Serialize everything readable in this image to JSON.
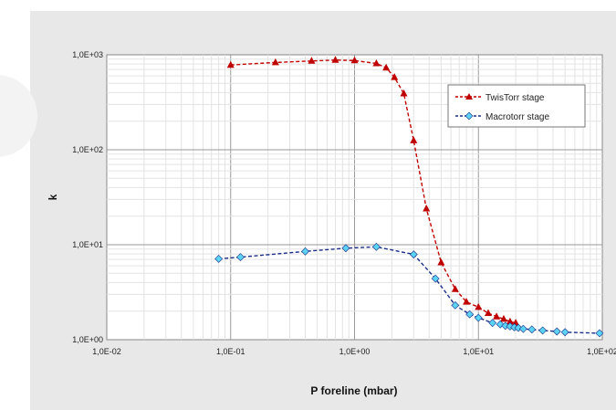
{
  "chart_data": {
    "type": "line",
    "xlabel": "P foreline (mbar)",
    "ylabel": "k",
    "x_scale": "log",
    "y_scale": "log",
    "xlim": [
      0.01,
      100
    ],
    "ylim": [
      1,
      1000
    ],
    "x_ticks": [
      "1,0E-02",
      "1,0E-01",
      "1,0E+00",
      "1,0E+01",
      "1,0E+02"
    ],
    "y_ticks": [
      "1,0E+00",
      "1,0E+01",
      "1,0E+02",
      "1,0E+03"
    ],
    "grid": true,
    "legend_position": "top-right",
    "series": [
      {
        "name": "TwisTorr stage",
        "color": "#c00000",
        "marker": "triangle",
        "line": "dashed",
        "points": [
          [
            0.1,
            780
          ],
          [
            0.23,
            830
          ],
          [
            0.45,
            860
          ],
          [
            0.7,
            880
          ],
          [
            1.0,
            870
          ],
          [
            1.5,
            810
          ],
          [
            1.8,
            730
          ],
          [
            2.1,
            580
          ],
          [
            2.5,
            390
          ],
          [
            3.0,
            125
          ],
          [
            3.8,
            24
          ],
          [
            5.0,
            6.5
          ],
          [
            6.5,
            3.4
          ],
          [
            8.0,
            2.5
          ],
          [
            10.0,
            2.2
          ],
          [
            12.0,
            1.9
          ],
          [
            14.0,
            1.75
          ],
          [
            16.0,
            1.65
          ],
          [
            18.0,
            1.55
          ],
          [
            20.0,
            1.5
          ]
        ]
      },
      {
        "name": "Macrotorr stage",
        "color": "#1a2e8a",
        "marker": "diamond",
        "marker_color": "#5bd3f5",
        "line": "dashed",
        "points": [
          [
            0.08,
            7.1
          ],
          [
            0.12,
            7.4
          ],
          [
            0.4,
            8.5
          ],
          [
            0.85,
            9.2
          ],
          [
            1.5,
            9.5
          ],
          [
            3.0,
            7.9
          ],
          [
            4.5,
            4.4
          ],
          [
            6.5,
            2.3
          ],
          [
            8.5,
            1.85
          ],
          [
            10.0,
            1.7
          ],
          [
            13.0,
            1.5
          ],
          [
            15.0,
            1.45
          ],
          [
            16.5,
            1.4
          ],
          [
            18.0,
            1.38
          ],
          [
            19.5,
            1.35
          ],
          [
            21.0,
            1.33
          ],
          [
            23.0,
            1.3
          ],
          [
            27.0,
            1.28
          ],
          [
            33.0,
            1.25
          ],
          [
            43.0,
            1.22
          ],
          [
            50.0,
            1.2
          ],
          [
            95.0,
            1.17
          ]
        ]
      }
    ]
  }
}
